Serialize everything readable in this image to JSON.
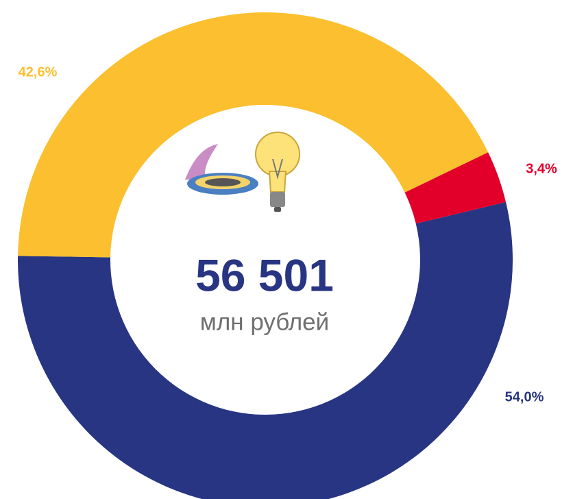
{
  "chart_data": {
    "type": "donut",
    "categories": [
      null,
      null,
      null
    ],
    "values": [
      54.0,
      42.6,
      3.4
    ],
    "value_labels": [
      "54,0%",
      "42,6%",
      "3,4%"
    ],
    "colors": [
      "#283583",
      "#fbbf2f",
      "#e2002b"
    ],
    "center_value": "56 501",
    "center_unit": "млн рублей"
  }
}
